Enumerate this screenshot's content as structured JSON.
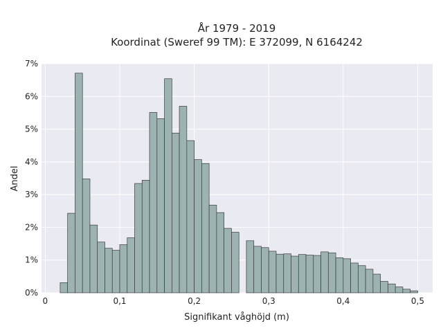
{
  "chart_data": {
    "type": "bar",
    "title": [
      "År 1979 - 2019",
      "Koordinat (Sweref 99 TM): E 372099, N 6164242"
    ],
    "xlabel": "Signifikant våghöjd (m)",
    "ylabel": "Andel",
    "xlim": [
      -0.005,
      0.52
    ],
    "ylim": [
      0,
      0.07
    ],
    "x_ticks": [
      0,
      0.1,
      0.2,
      0.3,
      0.4,
      0.5
    ],
    "x_tick_labels": [
      "0",
      "0,1",
      "0,2",
      "0,3",
      "0,4",
      "0,5"
    ],
    "y_ticks": [
      0,
      0.01,
      0.02,
      0.03,
      0.04,
      0.05,
      0.06,
      0.07
    ],
    "y_tick_labels": [
      "0%",
      "1%",
      "2%",
      "3%",
      "4%",
      "5%",
      "6%",
      "7%"
    ],
    "grid": true,
    "bin_width": 0.01,
    "bin_starts": [
      0.02,
      0.03,
      0.04,
      0.05,
      0.06,
      0.07,
      0.08,
      0.09,
      0.1,
      0.11,
      0.12,
      0.13,
      0.14,
      0.15,
      0.16,
      0.17,
      0.18,
      0.19,
      0.2,
      0.21,
      0.22,
      0.23,
      0.24,
      0.25,
      0.26,
      0.27,
      0.28,
      0.29,
      0.3,
      0.31,
      0.32,
      0.33,
      0.34,
      0.35,
      0.36,
      0.37,
      0.38,
      0.39,
      0.4,
      0.41,
      0.42,
      0.43,
      0.44,
      0.45,
      0.46,
      0.47,
      0.48,
      0.49
    ],
    "values": [
      0.0031,
      0.0243,
      0.0671,
      0.0348,
      0.0207,
      0.0155,
      0.0136,
      0.013,
      0.0147,
      0.0168,
      0.0334,
      0.0344,
      0.0551,
      0.0532,
      0.0654,
      0.0488,
      0.057,
      0.0465,
      0.0407,
      0.0395,
      0.0268,
      0.0245,
      0.0197,
      0.0185,
      0.0,
      0.0159,
      0.0142,
      0.0138,
      0.0127,
      0.0118,
      0.0119,
      0.0112,
      0.0117,
      0.0115,
      0.0114,
      0.0125,
      0.0122,
      0.0107,
      0.0104,
      0.0091,
      0.0083,
      0.0072,
      0.0057,
      0.0035,
      0.0027,
      0.0018,
      0.0011,
      0.0006
    ],
    "colors": {
      "bar_fill": "#9cb3b2",
      "bar_edge": "#3a3a3a",
      "plot_bg": "#eaeaf2",
      "grid": "#ffffff"
    }
  }
}
